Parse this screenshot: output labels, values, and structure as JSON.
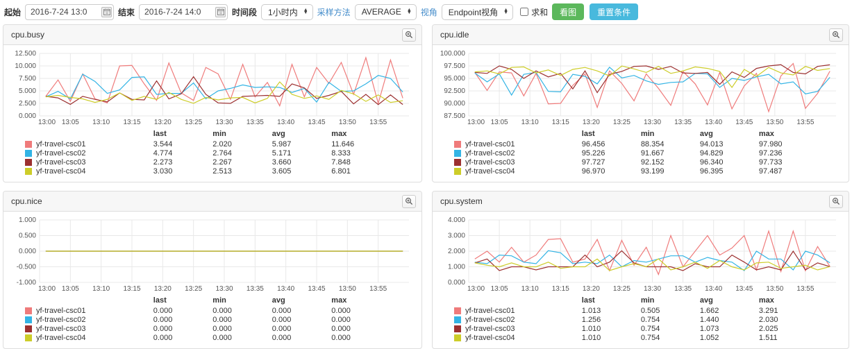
{
  "toolbar": {
    "start_label": "起始",
    "start_value": "2016-7-24 13:0",
    "end_label": "结束",
    "end_value": "2016-7-24 14:0",
    "period_label": "时间段",
    "period_value": "1小时内",
    "sampling_label": "采样方法",
    "sampling_value": "AVERAGE",
    "view_label": "视角",
    "view_value": "Endpoint视角",
    "sum_label": "求和",
    "sum_checked": false,
    "draw_button": "看图",
    "reset_button": "重置条件"
  },
  "colors": {
    "draw_button": "#5cb85c",
    "reset_button": "#48b9dd",
    "link": "#428bca",
    "grid": "#e8e8e8",
    "axis_text": "#555555"
  },
  "legend_headers": [
    "last",
    "min",
    "avg",
    "max"
  ],
  "hosts": [
    "yf-travel-csc01",
    "yf-travel-csc02",
    "yf-travel-csc03",
    "yf-travel-csc04"
  ],
  "series_colors": [
    "#ef7b7b",
    "#33b4e5",
    "#9c3030",
    "#cdcd29"
  ],
  "x_axis": {
    "ticks_minutes": [
      0,
      5,
      10,
      15,
      20,
      25,
      30,
      35,
      40,
      45,
      50,
      55
    ],
    "tick_labels": [
      "13:00",
      "13:05",
      "13:10",
      "13:15",
      "13:20",
      "13:25",
      "13:30",
      "13:35",
      "13:40",
      "13:45",
      "13:50",
      "13:55"
    ],
    "domain_minutes": [
      0,
      60
    ],
    "sample_minutes": [
      1,
      3,
      5,
      7,
      9,
      11,
      13,
      15,
      17,
      19,
      21,
      23,
      25,
      27,
      29,
      31,
      33,
      35,
      37,
      39,
      41,
      43,
      45,
      47,
      49,
      51,
      53,
      55,
      57,
      59
    ]
  },
  "chart_data": [
    {
      "type": "line",
      "title": "cpu.busy",
      "ylim": [
        0,
        12.5
      ],
      "yticks": [
        0,
        2.5,
        5,
        7.5,
        10,
        12.5
      ],
      "ytick_labels": [
        "0.000",
        "2.500",
        "5.000",
        "7.500",
        "10.000",
        "12.500"
      ],
      "series": [
        {
          "name": "yf-travel-csc01",
          "color": "#ef7b7b",
          "values": [
            3.9,
            7.2,
            2.9,
            8.4,
            3.4,
            2.6,
            10.0,
            10.1,
            6.4,
            3.1,
            10.6,
            4.6,
            3.1,
            9.7,
            8.4,
            3.3,
            10.3,
            3.8,
            6.7,
            2.02,
            10.3,
            3.8,
            9.7,
            6.5,
            10.7,
            4.3,
            11.646,
            2.5,
            11.2,
            3.544
          ],
          "stats": {
            "last": "3.544",
            "min": "2.020",
            "avg": "5.987",
            "max": "11.646"
          }
        },
        {
          "name": "yf-travel-csc02",
          "color": "#33b4e5",
          "values": [
            3.8,
            4.9,
            3.4,
            8.333,
            6.9,
            4.5,
            5.2,
            7.7,
            7.8,
            4.3,
            4.5,
            4.5,
            6.6,
            3.4,
            5.0,
            5.5,
            6.2,
            5.7,
            5.8,
            5.7,
            4.7,
            5.5,
            2.764,
            6.7,
            4.9,
            5.0,
            6.4,
            8.1,
            7.5,
            4.774
          ],
          "stats": {
            "last": "4.774",
            "min": "2.764",
            "avg": "5.171",
            "max": "8.333"
          }
        },
        {
          "name": "yf-travel-csc03",
          "color": "#9c3030",
          "values": [
            3.9,
            3.6,
            2.3,
            3.9,
            3.3,
            2.8,
            4.6,
            3.3,
            3.2,
            7.0,
            3.4,
            4.4,
            7.848,
            4.3,
            2.6,
            2.5,
            3.9,
            4.0,
            4.1,
            3.9,
            6.4,
            5.6,
            3.5,
            4.1,
            4.9,
            2.4,
            4.3,
            2.267,
            4.2,
            2.273
          ],
          "stats": {
            "last": "2.273",
            "min": "2.267",
            "avg": "3.660",
            "max": "7.848"
          }
        },
        {
          "name": "yf-travel-csc04",
          "color": "#cdcd29",
          "values": [
            3.8,
            4.1,
            3.7,
            3.4,
            2.7,
            3.3,
            4.6,
            3.1,
            3.9,
            3.3,
            4.7,
            3.3,
            2.513,
            3.7,
            3.2,
            3.6,
            3.7,
            2.6,
            3.5,
            6.801,
            4.3,
            3.5,
            4.0,
            3.3,
            5.1,
            4.4,
            2.9,
            4.2,
            2.7,
            3.03
          ],
          "stats": {
            "last": "3.030",
            "min": "2.513",
            "avg": "3.605",
            "max": "6.801"
          }
        }
      ]
    },
    {
      "type": "line",
      "title": "cpu.idle",
      "ylim": [
        87.5,
        100
      ],
      "yticks": [
        87.5,
        90,
        92.5,
        95,
        97.5,
        100
      ],
      "ytick_labels": [
        "87.500",
        "90.000",
        "92.500",
        "95.000",
        "97.500",
        "100.000"
      ],
      "series": [
        {
          "name": "yf-travel-csc01",
          "color": "#ef7b7b",
          "values": [
            96.2,
            92.6,
            96.3,
            96.1,
            91.5,
            96.0,
            89.9,
            90.0,
            93.6,
            95.9,
            89.2,
            96.5,
            94.0,
            90.5,
            95.9,
            93.0,
            89.6,
            96.4,
            93.9,
            89.7,
            96.2,
            88.9,
            93.5,
            96.0,
            88.354,
            95.5,
            97.98,
            89.0,
            92.0,
            96.456
          ],
          "stats": {
            "last": "96.456",
            "min": "88.354",
            "avg": "94.013",
            "max": "97.980"
          }
        },
        {
          "name": "yf-travel-csc02",
          "color": "#33b4e5",
          "values": [
            96.1,
            94.3,
            95.9,
            91.667,
            95.8,
            96.2,
            92.4,
            92.3,
            95.8,
            95.4,
            93.9,
            97.236,
            95.1,
            95.6,
            94.5,
            93.8,
            94.2,
            94.3,
            96.0,
            95.9,
            93.2,
            95.0,
            94.6,
            95.3,
            95.8,
            93.9,
            94.3,
            91.9,
            92.4,
            95.226
          ],
          "stats": {
            "last": "95.226",
            "min": "91.667",
            "avg": "94.829",
            "max": "97.236"
          }
        },
        {
          "name": "yf-travel-csc03",
          "color": "#9c3030",
          "values": [
            96.2,
            96.0,
            97.5,
            96.8,
            95.0,
            96.5,
            95.3,
            96.0,
            92.9,
            96.5,
            92.152,
            95.8,
            96.4,
            97.4,
            97.5,
            96.8,
            97.4,
            96.1,
            96.0,
            96.2,
            93.8,
            96.3,
            95.2,
            97.0,
            97.5,
            97.733,
            96.2,
            95.9,
            97.4,
            97.727
          ],
          "stats": {
            "last": "97.727",
            "min": "92.152",
            "avg": "96.340",
            "max": "97.733"
          }
        },
        {
          "name": "yf-travel-csc04",
          "color": "#cdcd29",
          "values": [
            96.3,
            96.5,
            95.9,
            97.2,
            97.3,
            96.1,
            96.7,
            95.6,
            96.8,
            97.2,
            96.5,
            95.5,
            97.487,
            96.9,
            96.2,
            97.4,
            96.0,
            96.5,
            97.3,
            97.0,
            96.4,
            93.199,
            96.8,
            95.4,
            97.2,
            96.1,
            95.7,
            97.4,
            96.6,
            96.97
          ],
          "stats": {
            "last": "96.970",
            "min": "93.199",
            "avg": "96.395",
            "max": "97.487"
          }
        }
      ]
    },
    {
      "type": "line",
      "title": "cpu.nice",
      "ylim": [
        -1,
        1
      ],
      "yticks": [
        -1,
        -0.5,
        0,
        0.5,
        1
      ],
      "ytick_labels": [
        "-1.000",
        "-0.500",
        "0.000",
        "0.500",
        "1.000"
      ],
      "series": [
        {
          "name": "yf-travel-csc01",
          "color": "#ef7b7b",
          "values": [
            0,
            0,
            0,
            0,
            0,
            0,
            0,
            0,
            0,
            0,
            0,
            0,
            0,
            0,
            0,
            0,
            0,
            0,
            0,
            0,
            0,
            0,
            0,
            0,
            0,
            0,
            0,
            0,
            0,
            0
          ],
          "stats": {
            "last": "0.000",
            "min": "0.000",
            "avg": "0.000",
            "max": "0.000"
          }
        },
        {
          "name": "yf-travel-csc02",
          "color": "#33b4e5",
          "values": [
            0,
            0,
            0,
            0,
            0,
            0,
            0,
            0,
            0,
            0,
            0,
            0,
            0,
            0,
            0,
            0,
            0,
            0,
            0,
            0,
            0,
            0,
            0,
            0,
            0,
            0,
            0,
            0,
            0,
            0
          ],
          "stats": {
            "last": "0.000",
            "min": "0.000",
            "avg": "0.000",
            "max": "0.000"
          }
        },
        {
          "name": "yf-travel-csc03",
          "color": "#9c3030",
          "values": [
            0,
            0,
            0,
            0,
            0,
            0,
            0,
            0,
            0,
            0,
            0,
            0,
            0,
            0,
            0,
            0,
            0,
            0,
            0,
            0,
            0,
            0,
            0,
            0,
            0,
            0,
            0,
            0,
            0,
            0
          ],
          "stats": {
            "last": "0.000",
            "min": "0.000",
            "avg": "0.000",
            "max": "0.000"
          }
        },
        {
          "name": "yf-travel-csc04",
          "color": "#cdcd29",
          "values": [
            0,
            0,
            0,
            0,
            0,
            0,
            0,
            0,
            0,
            0,
            0,
            0,
            0,
            0,
            0,
            0,
            0,
            0,
            0,
            0,
            0,
            0,
            0,
            0,
            0,
            0,
            0,
            0,
            0,
            0
          ],
          "stats": {
            "last": "0.000",
            "min": "0.000",
            "avg": "0.000",
            "max": "0.000"
          }
        }
      ]
    },
    {
      "type": "line",
      "title": "cpu.system",
      "ylim": [
        0,
        4
      ],
      "yticks": [
        0,
        1,
        2,
        3,
        4
      ],
      "ytick_labels": [
        "0.000",
        "1.000",
        "2.000",
        "3.000",
        "4.000"
      ],
      "series": [
        {
          "name": "yf-travel-csc01",
          "color": "#ef7b7b",
          "values": [
            1.5,
            2.0,
            1.3,
            2.25,
            1.3,
            1.75,
            2.75,
            2.8,
            1.3,
            1.5,
            2.75,
            0.75,
            2.7,
            1.1,
            2.25,
            0.505,
            3.0,
            1.0,
            2.0,
            3.0,
            1.75,
            2.2,
            3.0,
            0.8,
            3.291,
            0.7,
            3.291,
            0.75,
            2.3,
            1.013
          ],
          "stats": {
            "last": "1.013",
            "min": "0.505",
            "avg": "1.662",
            "max": "3.291"
          }
        },
        {
          "name": "yf-travel-csc02",
          "color": "#33b4e5",
          "values": [
            1.3,
            1.2,
            1.75,
            1.7,
            1.3,
            1.2,
            2.03,
            1.9,
            1.2,
            1.3,
            1.2,
            1.75,
            1.0,
            1.4,
            1.3,
            1.5,
            1.7,
            1.7,
            1.3,
            1.6,
            1.4,
            1.3,
            0.754,
            2.0,
            1.5,
            1.5,
            0.8,
            2.0,
            1.75,
            1.256
          ],
          "stats": {
            "last": "1.256",
            "min": "0.754",
            "avg": "1.440",
            "max": "2.030"
          }
        },
        {
          "name": "yf-travel-csc03",
          "color": "#9c3030",
          "values": [
            1.25,
            1.5,
            0.76,
            1.0,
            1.0,
            0.8,
            1.0,
            1.0,
            1.0,
            1.75,
            1.0,
            1.3,
            2.025,
            1.25,
            1.0,
            1.0,
            1.0,
            0.754,
            1.2,
            1.0,
            1.0,
            1.75,
            1.3,
            0.8,
            1.0,
            0.8,
            2.0,
            0.8,
            1.25,
            1.01
          ],
          "stats": {
            "last": "1.010",
            "min": "0.754",
            "avg": "1.073",
            "max": "2.025"
          }
        },
        {
          "name": "yf-travel-csc04",
          "color": "#cdcd29",
          "values": [
            1.25,
            1.1,
            1.0,
            1.25,
            1.0,
            1.0,
            1.3,
            0.9,
            1.0,
            1.0,
            1.5,
            0.754,
            1.0,
            1.2,
            1.0,
            1.511,
            0.8,
            1.0,
            1.3,
            0.9,
            1.4,
            1.0,
            0.8,
            1.25,
            1.3,
            0.9,
            1.0,
            1.1,
            0.8,
            1.01
          ],
          "stats": {
            "last": "1.010",
            "min": "0.754",
            "avg": "1.052",
            "max": "1.511"
          }
        }
      ]
    }
  ]
}
